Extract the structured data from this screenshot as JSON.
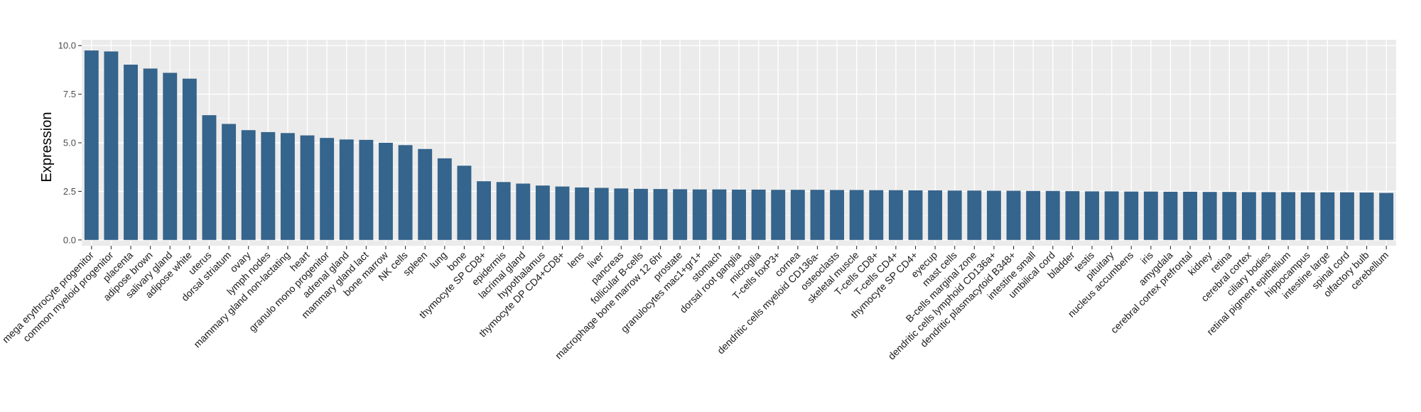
{
  "colors": {
    "bar": "#35648c",
    "panel": "#ebebeb",
    "grid_major": "#ffffff",
    "grid_minor": "#f5f5f5"
  },
  "chart_data": {
    "type": "bar",
    "title": "",
    "xlabel": "",
    "ylabel": "Expression",
    "ylim": [
      -0.3,
      10.3
    ],
    "yticks": [
      0.0,
      2.5,
      5.0,
      7.5,
      10.0
    ],
    "ytick_labels": [
      "0.0",
      "2.5",
      "5.0",
      "7.5",
      "10.0"
    ],
    "grid": true,
    "legend": "none",
    "categories": [
      "mega erythrocyte progenitor",
      "common myeloid progenitor",
      "placenta",
      "adipose brown",
      "salivary gland",
      "adipose white",
      "uterus",
      "dorsal striatum",
      "ovary",
      "lymph nodes",
      "mammary gland non-lactating",
      "heart",
      "granulo mono progenitor",
      "adrenal gland",
      "mammary gland  lact",
      "bone marrow",
      "NK cells",
      "spleen",
      "lung",
      "bone",
      "thymocyte SP CD8+",
      "epidermis",
      "lacrimal gland",
      "hypothalamus",
      "thymocyte DP CD4+CD8+",
      "lens",
      "liver",
      "pancreas",
      "follicular B-cells",
      "macrophage bone marrow 12 6hr",
      "prostate",
      "granulocytes mac1+gr1+",
      "stomach",
      "dorsal root ganglia",
      "microglia",
      "T-cells foxP3+",
      "cornea",
      "dendritic cells myeloid CD136a-",
      "osteoclasts",
      "skeletal muscle",
      "T-cells CD8+",
      "T-cells CD4+",
      "thymocyte SP CD4+",
      "eyecup",
      "mast cells",
      "B-cells marginal zone",
      "dendritic cells lymphoid CD136a+",
      "dendritic plasmacytoid B348+",
      "intestine small",
      "umbilical cord",
      "bladder",
      "testis",
      "pituitary",
      "nucleus accumbens",
      "iris",
      "amygdala",
      "cerebral cortex prefrontal",
      "kidney",
      "retina",
      "cerebral cortex",
      "ciliary bodies",
      "retinal pigment epithelium",
      "hippocampus",
      "intestine large",
      "spinal cord",
      "olfactory bulb",
      "cerebellum"
    ],
    "values": [
      9.75,
      9.7,
      9.02,
      8.82,
      8.6,
      8.3,
      6.42,
      5.97,
      5.65,
      5.55,
      5.5,
      5.38,
      5.25,
      5.17,
      5.15,
      5.0,
      4.88,
      4.68,
      4.2,
      3.82,
      3.02,
      2.98,
      2.9,
      2.8,
      2.75,
      2.7,
      2.68,
      2.65,
      2.63,
      2.62,
      2.61,
      2.6,
      2.6,
      2.59,
      2.59,
      2.58,
      2.58,
      2.58,
      2.57,
      2.57,
      2.56,
      2.56,
      2.55,
      2.55,
      2.54,
      2.54,
      2.53,
      2.53,
      2.52,
      2.52,
      2.51,
      2.5,
      2.5,
      2.49,
      2.49,
      2.48,
      2.48,
      2.47,
      2.47,
      2.46,
      2.46,
      2.46,
      2.45,
      2.45,
      2.45,
      2.44,
      2.42
    ]
  }
}
